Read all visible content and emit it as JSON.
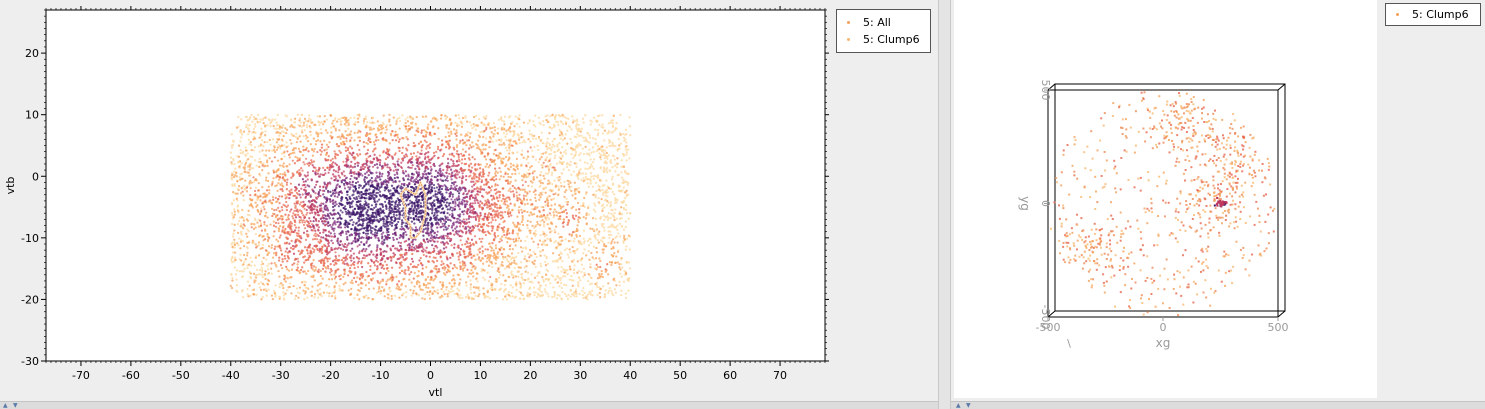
{
  "chart_data": [
    {
      "type": "scatter",
      "title": "",
      "xlabel": "vtl",
      "ylabel": "vtb",
      "xlim": [
        -77,
        79
      ],
      "ylim": [
        -30,
        27
      ],
      "xticks": [
        -70,
        -60,
        -50,
        -40,
        -30,
        -20,
        -10,
        0,
        10,
        20,
        30,
        40,
        50,
        60,
        70
      ],
      "yticks": [
        -30,
        -20,
        -10,
        0,
        10,
        20
      ],
      "grid": false,
      "legend_position": "outside-top-right",
      "series": [
        {
          "name": "5: All",
          "color": "#f3a15b",
          "density_colormap": [
            "#fcd8a0",
            "#f7a45c",
            "#e8684e",
            "#c03a5e",
            "#7d2a7a",
            "#3c1468"
          ],
          "extent_x": [
            -40,
            40
          ],
          "extent_y": [
            -20,
            10
          ],
          "dense_regions": [
            {
              "x": -15,
              "y": -6
            },
            {
              "x": 2,
              "y": -4
            },
            {
              "x": -25,
              "y": -1
            },
            {
              "x": -28,
              "y": -13
            },
            {
              "x": 35,
              "y": -14
            },
            {
              "x": 28,
              "y": -7
            }
          ]
        },
        {
          "name": "5: Clump6",
          "color": "#f7b870",
          "outline": [
            [
              -5,
              -2
            ],
            [
              -3,
              -3
            ],
            [
              -2,
              -1
            ],
            [
              -1,
              -3
            ],
            [
              -1,
              -6
            ],
            [
              -2,
              -9
            ],
            [
              -3,
              -10
            ],
            [
              -4,
              -10
            ],
            [
              -4,
              -8
            ],
            [
              -5,
              -7
            ],
            [
              -5,
              -5
            ],
            [
              -6,
              -3
            ]
          ]
        }
      ]
    },
    {
      "type": "scatter",
      "title": "",
      "xlabel": "xg",
      "ylabel": "yg",
      "zlabel": "\\",
      "projection": "3d-cube",
      "xlim": [
        -500,
        500
      ],
      "ylim": [
        -500,
        500
      ],
      "xticks": [
        -500,
        0,
        500
      ],
      "yticks": [
        -500,
        0,
        500
      ],
      "grid": false,
      "legend_position": "outside-top-right",
      "series": [
        {
          "name": "5: Clump6",
          "color": "#f3a15b",
          "shape": "disc",
          "radius": 500,
          "dense_regions": [
            {
              "x": 100,
              "y": 350
            },
            {
              "x": -300,
              "y": -200
            },
            {
              "x": 250,
              "y": 0
            },
            {
              "x": 300,
              "y": 200
            }
          ],
          "peak": {
            "x": 250,
            "y": 0
          }
        }
      ]
    }
  ]
}
